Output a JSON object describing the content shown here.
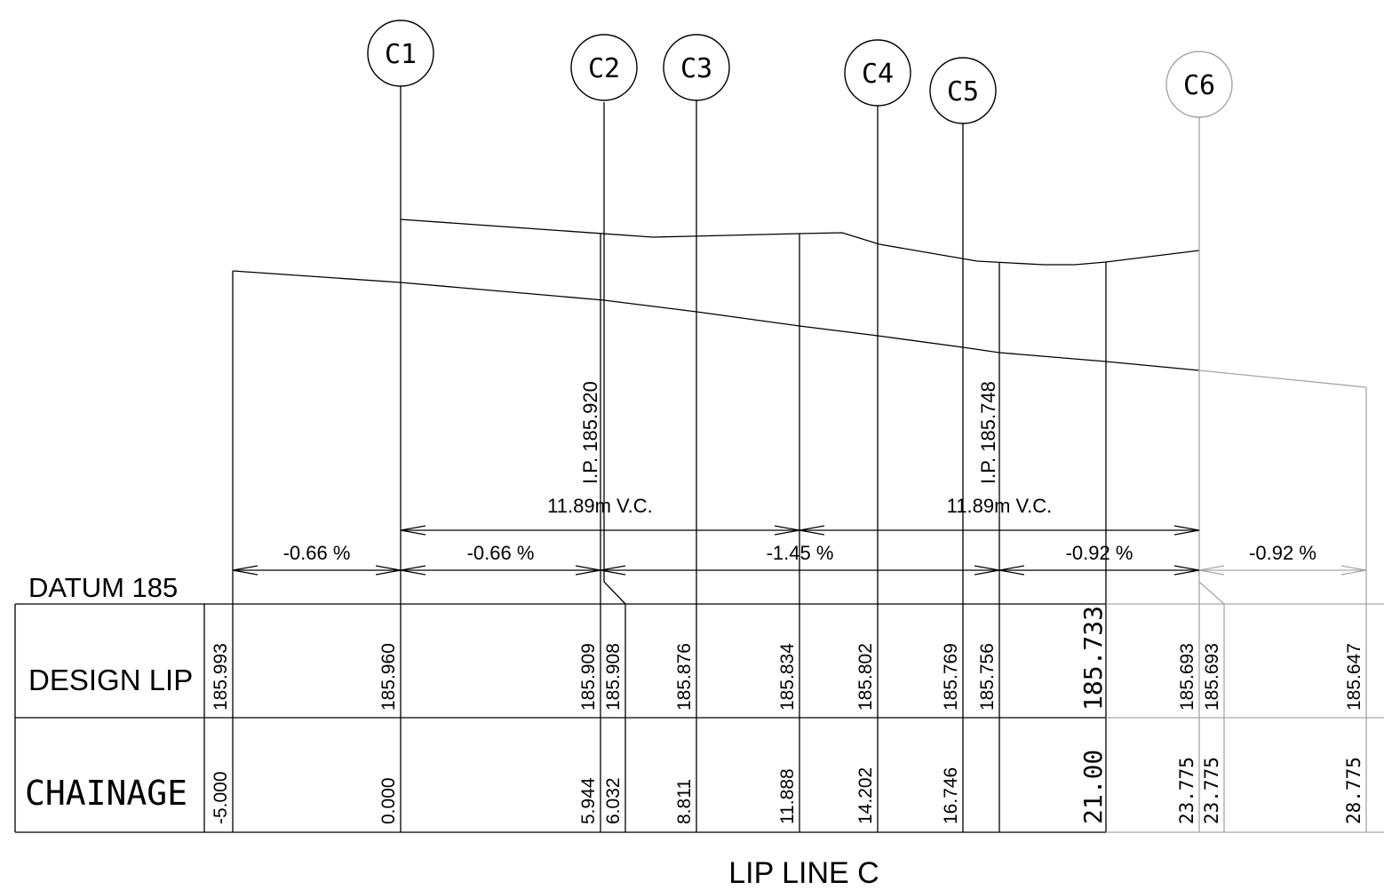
{
  "title": "LIP LINE C",
  "datum": "DATUM 185",
  "rows": {
    "design": "DESIGN LIP",
    "chainage": "CHAINAGE"
  },
  "colors": {
    "ink": "#000000",
    "faded": "#a6a6a6"
  },
  "markers": [
    {
      "label": "C1",
      "faded": false
    },
    {
      "label": "C2",
      "faded": false
    },
    {
      "label": "C3",
      "faded": false
    },
    {
      "label": "C4",
      "faded": false
    },
    {
      "label": "C5",
      "faded": false
    },
    {
      "label": "C6",
      "faded": true
    }
  ],
  "stations": [
    {
      "chainage": "-5.000",
      "level": "185.993",
      "faded": false
    },
    {
      "chainage": "0.000",
      "level": "185.960",
      "faded": false
    },
    {
      "chainage": "5.944",
      "level": "185.909",
      "faded": false
    },
    {
      "chainage": "6.032",
      "level": "185.908",
      "faded": false
    },
    {
      "chainage": "8.811",
      "level": "185.876",
      "faded": false
    },
    {
      "chainage": "11.888",
      "level": "185.834",
      "faded": false
    },
    {
      "chainage": "14.202",
      "level": "185.802",
      "faded": false
    },
    {
      "chainage": "16.746",
      "level": "185.769",
      "faded": false
    },
    {
      "chainage": "",
      "level": "185.756",
      "faded": false
    },
    {
      "chainage": "21.00",
      "level": "185.733",
      "faded": false
    },
    {
      "chainage": "23.775",
      "level": "185.693",
      "faded": true
    },
    {
      "chainage": "23.775",
      "level": "185.693",
      "faded": true
    },
    {
      "chainage": "28.775",
      "level": "185.647",
      "faded": true
    }
  ],
  "grades": [
    {
      "label": "-0.66 %",
      "faded": false
    },
    {
      "label": "-0.66 %",
      "faded": false
    },
    {
      "label": "-1.45 %",
      "faded": false
    },
    {
      "label": "-0.92 %",
      "faded": false
    },
    {
      "label": "-0.92 %",
      "faded": true
    }
  ],
  "vertical_curves": [
    {
      "label": "11.89m V.C.",
      "ip": "I.P. 185.920"
    },
    {
      "label": "11.89m V.C.",
      "ip": "I.P. 185.748"
    }
  ]
}
